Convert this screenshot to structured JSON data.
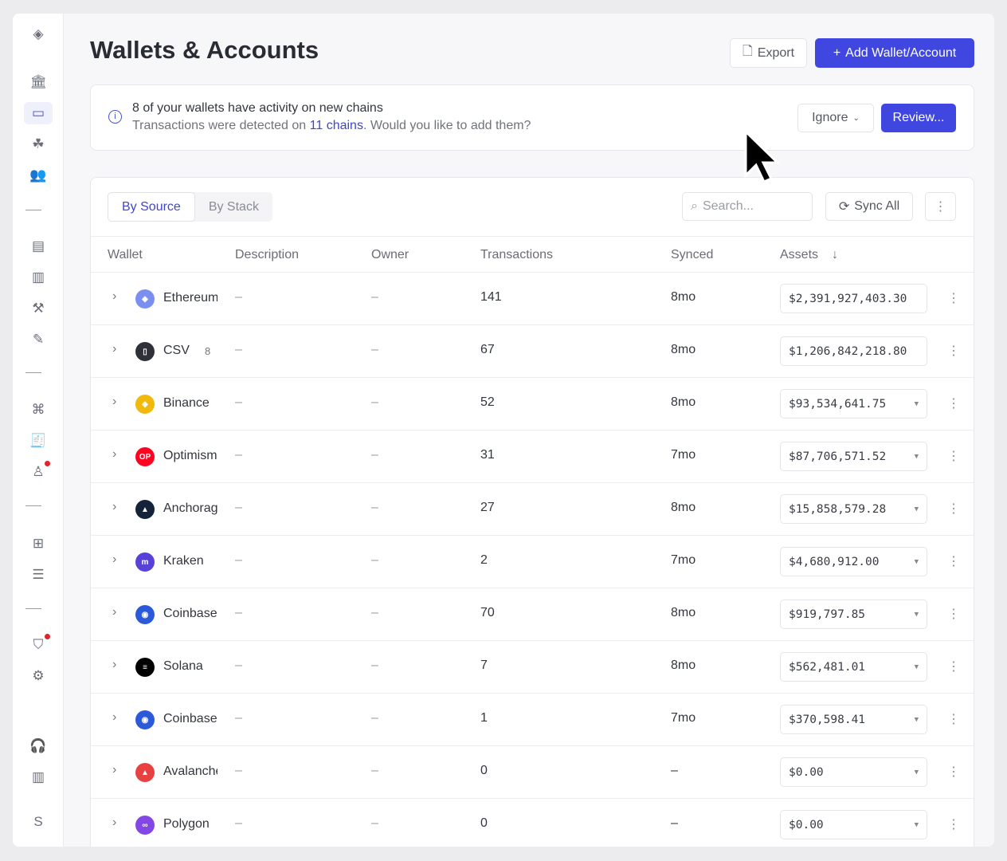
{
  "header": {
    "title": "Wallets & Accounts",
    "export_label": "Export",
    "add_label": "Add Wallet/Account"
  },
  "sidebar": {
    "items": [
      "logo",
      "bank",
      "wallets",
      "network",
      "contacts",
      "sep",
      "ledger",
      "reports",
      "magic",
      "edit-doc",
      "sep",
      "transfers",
      "receipt",
      "stamp",
      "sep",
      "table",
      "rows",
      "sep",
      "shield-chat",
      "settings"
    ],
    "bottom": [
      "support",
      "reports-alt"
    ],
    "avatar": "S"
  },
  "banner": {
    "title": "8 of your wallets have activity on new chains",
    "text_before": "Transactions were detected on ",
    "link": "11 chains",
    "text_after": ". Would you like to add them?",
    "ignore_label": "Ignore",
    "review_label": "Review..."
  },
  "toolbar": {
    "tabs": [
      "By Source",
      "By Stack"
    ],
    "active_tab": "By Source",
    "search_placeholder": "Search...",
    "sync_label": "Sync All"
  },
  "table": {
    "columns": [
      "Wallet",
      "Description",
      "Owner",
      "Transactions",
      "Synced",
      "Assets"
    ],
    "sort_column": "Assets",
    "sort_dir": "desc",
    "rows": [
      {
        "name": "Ethereum",
        "icon": "ethereum",
        "color": "#7b8ff0",
        "badge": "",
        "description": "–",
        "owner": "–",
        "transactions": "141",
        "synced": "8mo",
        "assets": "$2,391,927,403.30",
        "dropdown": false
      },
      {
        "name": "CSV",
        "icon": "file",
        "color": "#2f3138",
        "badge": "8",
        "description": "–",
        "owner": "–",
        "transactions": "67",
        "synced": "8mo",
        "assets": "$1,206,842,218.80",
        "dropdown": false
      },
      {
        "name": "Binance",
        "icon": "binance",
        "color": "#f0b90b",
        "badge": "",
        "description": "–",
        "owner": "–",
        "transactions": "52",
        "synced": "8mo",
        "assets": "$93,534,641.75",
        "dropdown": true
      },
      {
        "name": "Optimism",
        "icon": "optimism",
        "color": "#ff0420",
        "badge": "",
        "description": "–",
        "owner": "–",
        "transactions": "31",
        "synced": "7mo",
        "assets": "$87,706,571.52",
        "dropdown": true
      },
      {
        "name": "Anchorage",
        "icon": "anchorage",
        "color": "#14233a",
        "badge": "",
        "description": "–",
        "owner": "–",
        "transactions": "27",
        "synced": "8mo",
        "assets": "$15,858,579.28",
        "dropdown": true
      },
      {
        "name": "Kraken",
        "icon": "kraken",
        "color": "#5741d9",
        "badge": "",
        "description": "–",
        "owner": "–",
        "transactions": "2",
        "synced": "7mo",
        "assets": "$4,680,912.00",
        "dropdown": true
      },
      {
        "name": "Coinbase",
        "icon": "coinbase",
        "color": "#2a5ada",
        "badge": "",
        "description": "–",
        "owner": "–",
        "transactions": "70",
        "synced": "8mo",
        "assets": "$919,797.85",
        "dropdown": true
      },
      {
        "name": "Solana",
        "icon": "solana",
        "color": "#000000",
        "badge": "",
        "description": "–",
        "owner": "–",
        "transactions": "7",
        "synced": "8mo",
        "assets": "$562,481.01",
        "dropdown": true
      },
      {
        "name": "Coinbase",
        "icon": "coinbase",
        "color": "#2a5ada",
        "badge": "",
        "description": "–",
        "owner": "–",
        "transactions": "1",
        "synced": "7mo",
        "assets": "$370,598.41",
        "dropdown": true
      },
      {
        "name": "Avalanche",
        "icon": "avalanche",
        "color": "#e84142",
        "badge": "",
        "description": "–",
        "owner": "–",
        "transactions": "0",
        "synced": "–",
        "assets": "$0.00",
        "dropdown": true
      },
      {
        "name": "Polygon",
        "icon": "polygon",
        "color": "#8247e5",
        "badge": "",
        "description": "–",
        "owner": "–",
        "transactions": "0",
        "synced": "–",
        "assets": "$0.00",
        "dropdown": true
      }
    ]
  },
  "colors": {
    "primary": "#3f47e0",
    "link": "#3f47c9"
  }
}
